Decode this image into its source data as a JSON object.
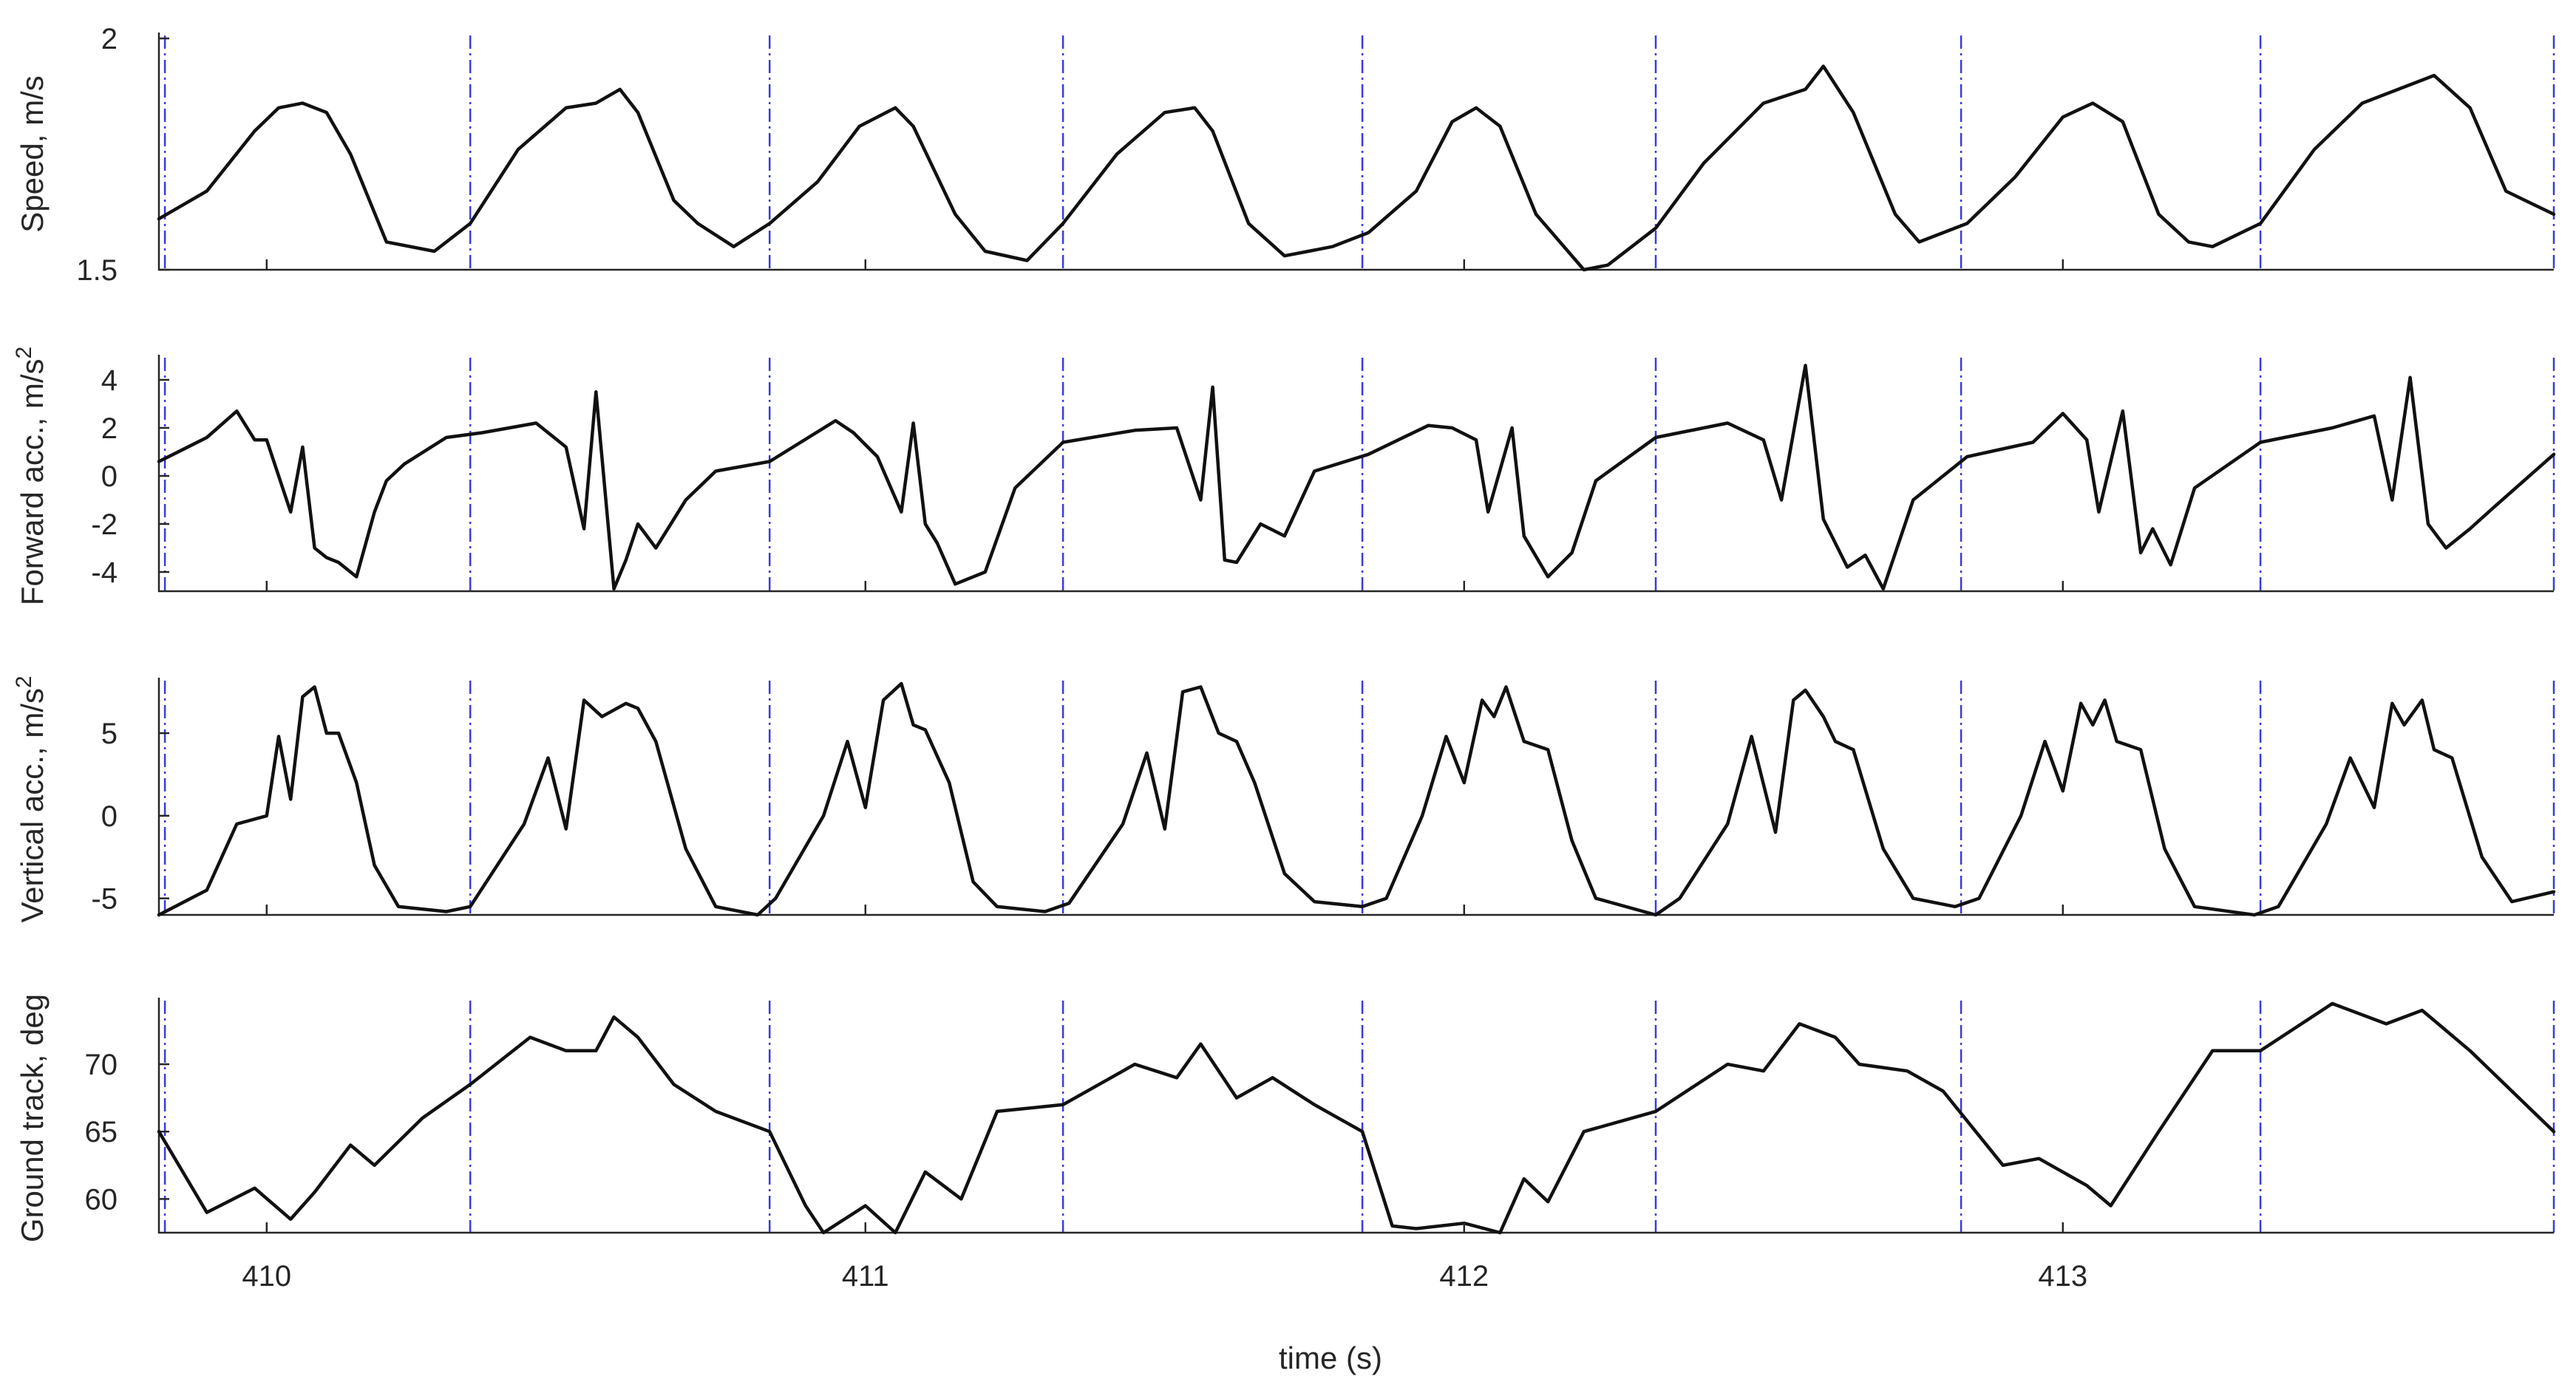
{
  "colors": {
    "series": "#111111",
    "markers": "#3b3bdc",
    "axes": "#262626"
  },
  "chart_data": {
    "type": "line",
    "layout": "4 stacked subplots sharing the time axis",
    "xlabel": "time (s)",
    "xlim": [
      409.82,
      413.82
    ],
    "xticks": [
      410,
      411,
      412,
      413
    ],
    "xtick_labels": [
      "410",
      "411",
      "412",
      "413"
    ],
    "stride_markers": [
      409.83,
      410.34,
      410.84,
      411.33,
      411.83,
      412.32,
      412.83,
      413.33,
      413.82
    ],
    "subplots": [
      {
        "ylabel": "Speed, m/s",
        "ylim": [
          1.5,
          2.0
        ],
        "yticks": [
          1.5,
          2
        ],
        "ytick_labels": [
          "1.5",
          "2"
        ],
        "x": [
          409.82,
          409.9,
          409.98,
          410.02,
          410.06,
          410.1,
          410.14,
          410.2,
          410.28,
          410.34,
          410.42,
          410.5,
          410.55,
          410.59,
          410.62,
          410.68,
          410.72,
          410.78,
          410.84,
          410.92,
          410.99,
          411.05,
          411.08,
          411.15,
          411.2,
          411.27,
          411.33,
          411.42,
          411.5,
          411.55,
          411.58,
          411.64,
          411.7,
          411.74,
          411.78,
          411.84,
          411.92,
          411.98,
          412.02,
          412.06,
          412.12,
          412.2,
          412.24,
          412.32,
          412.4,
          412.5,
          412.57,
          412.6,
          412.65,
          412.72,
          412.76,
          412.84,
          412.92,
          413.0,
          413.05,
          413.1,
          413.16,
          413.21,
          413.25,
          413.33,
          413.42,
          413.5,
          413.58,
          413.62,
          413.68,
          413.74,
          413.82
        ],
        "y": [
          1.61,
          1.67,
          1.8,
          1.85,
          1.86,
          1.84,
          1.75,
          1.56,
          1.54,
          1.6,
          1.76,
          1.85,
          1.86,
          1.89,
          1.84,
          1.65,
          1.6,
          1.55,
          1.6,
          1.69,
          1.81,
          1.85,
          1.81,
          1.62,
          1.54,
          1.52,
          1.6,
          1.75,
          1.84,
          1.85,
          1.8,
          1.6,
          1.53,
          1.54,
          1.55,
          1.58,
          1.67,
          1.82,
          1.85,
          1.81,
          1.62,
          1.5,
          1.51,
          1.59,
          1.73,
          1.86,
          1.89,
          1.94,
          1.84,
          1.62,
          1.56,
          1.6,
          1.7,
          1.83,
          1.86,
          1.82,
          1.62,
          1.56,
          1.55,
          1.6,
          1.76,
          1.86,
          1.9,
          1.92,
          1.85,
          1.67,
          1.62
        ]
      },
      {
        "ylabel": "Forward acc., m/s",
        "ylabel_superscript": "2",
        "ylim": [
          -4.8,
          4.8
        ],
        "yticks": [
          -4,
          -2,
          0,
          2,
          4
        ],
        "ytick_labels": [
          "-4",
          "-2",
          "0",
          "2",
          "4"
        ],
        "x": [
          409.82,
          409.9,
          409.95,
          409.98,
          410.0,
          410.04,
          410.06,
          410.08,
          410.1,
          410.12,
          410.15,
          410.18,
          410.2,
          410.23,
          410.3,
          410.36,
          410.45,
          410.5,
          410.53,
          410.55,
          410.58,
          410.6,
          410.62,
          410.65,
          410.7,
          410.75,
          410.84,
          410.95,
          410.98,
          411.02,
          411.06,
          411.08,
          411.1,
          411.12,
          411.15,
          411.2,
          411.25,
          411.33,
          411.45,
          411.52,
          411.56,
          411.58,
          411.6,
          411.62,
          411.66,
          411.7,
          411.75,
          411.84,
          411.94,
          411.98,
          412.02,
          412.04,
          412.08,
          412.1,
          412.14,
          412.18,
          412.22,
          412.32,
          412.44,
          412.5,
          412.53,
          412.57,
          412.6,
          412.64,
          412.67,
          412.7,
          412.75,
          412.84,
          412.95,
          413.0,
          413.04,
          413.06,
          413.1,
          413.13,
          413.15,
          413.18,
          413.22,
          413.33,
          413.45,
          413.52,
          413.55,
          413.58,
          413.61,
          413.64,
          413.68,
          413.72,
          413.82
        ],
        "y": [
          0.6,
          1.6,
          2.7,
          1.5,
          1.5,
          -1.5,
          1.2,
          -3.0,
          -3.4,
          -3.6,
          -4.2,
          -1.5,
          -0.2,
          0.5,
          1.6,
          1.8,
          2.2,
          1.2,
          -2.2,
          3.5,
          -4.7,
          -3.5,
          -2.0,
          -3.0,
          -1.0,
          0.2,
          0.6,
          2.3,
          1.8,
          0.8,
          -1.5,
          2.2,
          -2.0,
          -2.8,
          -4.5,
          -4.0,
          -0.5,
          1.4,
          1.9,
          2.0,
          -1.0,
          3.7,
          -3.5,
          -3.6,
          -2.0,
          -2.5,
          0.2,
          0.9,
          2.1,
          2.0,
          1.5,
          -1.5,
          2.0,
          -2.5,
          -4.2,
          -3.2,
          -0.2,
          1.6,
          2.2,
          1.5,
          -1.0,
          4.6,
          -1.8,
          -3.8,
          -3.3,
          -4.7,
          -1.0,
          0.8,
          1.4,
          2.6,
          1.5,
          -1.5,
          2.7,
          -3.2,
          -2.2,
          -3.7,
          -0.5,
          1.4,
          2.0,
          2.5,
          -1.0,
          4.1,
          -2.0,
          -3.0,
          -2.2,
          -1.3,
          0.9
        ]
      },
      {
        "ylabel": "Vertical acc., m/s",
        "ylabel_superscript": "2",
        "ylim": [
          -6.0,
          8.0
        ],
        "yticks": [
          -5,
          0,
          5
        ],
        "ytick_labels": [
          "-5",
          "0",
          "5"
        ],
        "x": [
          409.82,
          409.9,
          409.95,
          410.0,
          410.02,
          410.04,
          410.06,
          410.08,
          410.1,
          410.12,
          410.15,
          410.18,
          410.22,
          410.3,
          410.34,
          410.43,
          410.47,
          410.5,
          410.53,
          410.56,
          410.6,
          410.62,
          410.65,
          410.7,
          410.75,
          410.82,
          410.85,
          410.93,
          410.97,
          411.0,
          411.03,
          411.06,
          411.08,
          411.1,
          411.14,
          411.18,
          411.22,
          411.3,
          411.34,
          411.43,
          411.47,
          411.5,
          411.53,
          411.56,
          411.59,
          411.62,
          411.65,
          411.7,
          411.75,
          411.83,
          411.87,
          411.93,
          411.97,
          412.0,
          412.03,
          412.05,
          412.07,
          412.1,
          412.14,
          412.18,
          412.22,
          412.32,
          412.36,
          412.44,
          412.48,
          412.52,
          412.55,
          412.57,
          412.6,
          412.62,
          412.65,
          412.7,
          412.75,
          412.82,
          412.86,
          412.93,
          412.97,
          413.0,
          413.03,
          413.05,
          413.07,
          413.09,
          413.13,
          413.17,
          413.22,
          413.32,
          413.36,
          413.44,
          413.48,
          413.52,
          413.55,
          413.57,
          413.6,
          413.62,
          413.65,
          413.7,
          413.75,
          413.82
        ],
        "y": [
          -6.0,
          -4.5,
          -0.5,
          0,
          4.8,
          1.0,
          7.2,
          7.8,
          5.0,
          5.0,
          2.0,
          -3.0,
          -5.5,
          -5.8,
          -5.5,
          -0.5,
          3.5,
          -0.8,
          7.0,
          6.0,
          6.8,
          6.5,
          4.5,
          -2.0,
          -5.5,
          -6.0,
          -5.0,
          0,
          4.5,
          0.5,
          7.0,
          8.0,
          5.5,
          5.2,
          2.0,
          -4.0,
          -5.5,
          -5.8,
          -5.3,
          -0.5,
          3.8,
          -0.8,
          7.5,
          7.8,
          5.0,
          4.5,
          2.0,
          -3.5,
          -5.2,
          -5.5,
          -5.0,
          0,
          4.8,
          2.0,
          7.0,
          6.0,
          7.8,
          4.5,
          4.0,
          -1.5,
          -5.0,
          -6.0,
          -5.0,
          -0.5,
          4.8,
          -1.0,
          7.0,
          7.6,
          6.0,
          4.5,
          4.0,
          -2.0,
          -5.0,
          -5.5,
          -5.0,
          0,
          4.5,
          1.5,
          6.8,
          5.5,
          7.0,
          4.5,
          4.0,
          -2.0,
          -5.5,
          -6.0,
          -5.5,
          -0.5,
          3.5,
          0.5,
          6.8,
          5.5,
          7.0,
          4.0,
          3.5,
          -2.5,
          -5.2,
          -4.6
        ]
      },
      {
        "ylabel": "Ground track, deg",
        "ylim": [
          57.5,
          74.5
        ],
        "yticks": [
          60,
          65,
          70
        ],
        "ytick_labels": [
          "60",
          "65",
          "70"
        ],
        "x": [
          409.82,
          409.9,
          409.98,
          410.04,
          410.08,
          410.14,
          410.18,
          410.26,
          410.34,
          410.44,
          410.5,
          410.55,
          410.58,
          410.62,
          410.68,
          410.75,
          410.84,
          410.9,
          410.93,
          411.0,
          411.05,
          411.1,
          411.16,
          411.22,
          411.33,
          411.45,
          411.52,
          411.56,
          411.62,
          411.68,
          411.75,
          411.83,
          411.88,
          411.92,
          412.0,
          412.06,
          412.1,
          412.14,
          412.2,
          412.32,
          412.44,
          412.5,
          412.56,
          412.62,
          412.66,
          412.74,
          412.8,
          412.9,
          412.96,
          413.04,
          413.08,
          413.16,
          413.25,
          413.33,
          413.45,
          413.54,
          413.6,
          413.68,
          413.75,
          413.82
        ],
        "y": [
          65.0,
          59.0,
          60.8,
          58.5,
          60.5,
          64.0,
          62.5,
          66.0,
          68.5,
          72.0,
          71.0,
          71.0,
          73.5,
          72.0,
          68.5,
          66.5,
          65.0,
          59.5,
          57.5,
          59.5,
          57.5,
          62.0,
          60.0,
          66.5,
          67.0,
          70.0,
          69.0,
          71.5,
          67.5,
          69.0,
          67.0,
          65.0,
          58.0,
          57.8,
          58.2,
          57.5,
          61.5,
          59.8,
          65.0,
          66.5,
          70.0,
          69.5,
          73.0,
          72.0,
          70.0,
          69.5,
          68.0,
          62.5,
          63.0,
          61.0,
          59.5,
          65.0,
          71.0,
          71.0,
          74.5,
          73.0,
          74.0,
          71.0,
          68.0,
          65.0
        ]
      }
    ]
  }
}
